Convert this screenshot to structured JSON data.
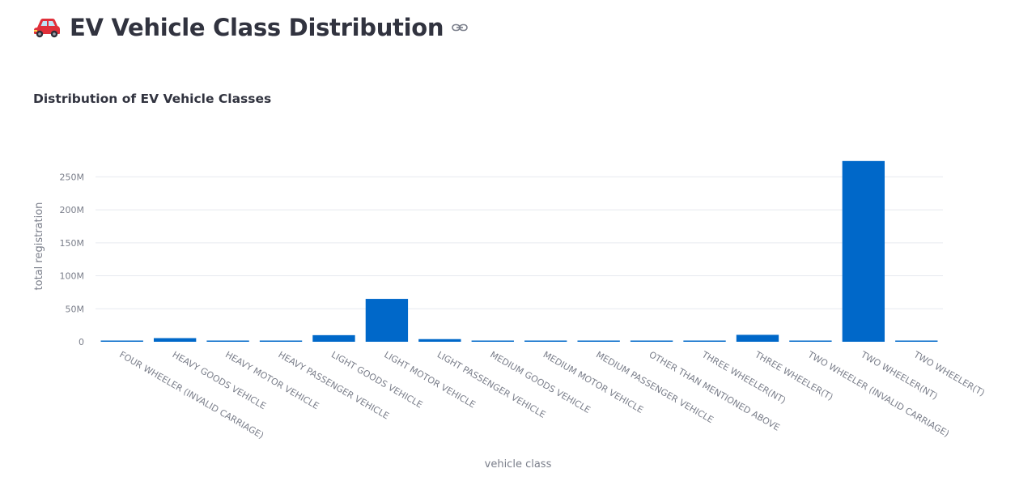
{
  "header": {
    "title": "EV Vehicle Class Distribution",
    "icon": "car-icon",
    "anchor_icon": "link-icon"
  },
  "chart_data": {
    "type": "bar",
    "title": "Distribution of EV Vehicle Classes",
    "xlabel": "vehicle class",
    "ylabel": "total registration",
    "ylim": [
      0,
      275000000
    ],
    "yticks": [
      0,
      50000000,
      100000000,
      150000000,
      200000000,
      250000000
    ],
    "ytick_labels": [
      "0",
      "50M",
      "100M",
      "150M",
      "200M",
      "250M"
    ],
    "grid": true,
    "bar_color": "#0068c9",
    "categories": [
      "FOUR WHEELER (INVALID CARRIAGE)",
      "HEAVY GOODS VEHICLE",
      "HEAVY MOTOR VEHICLE",
      "HEAVY PASSENGER VEHICLE",
      "LIGHT GOODS VEHICLE",
      "LIGHT MOTOR VEHICLE",
      "LIGHT PASSENGER VEHICLE",
      "MEDIUM GOODS VEHICLE",
      "MEDIUM MOTOR VEHICLE",
      "MEDIUM PASSENGER VEHICLE",
      "OTHER THAN MENTIONED ABOVE",
      "THREE WHEELER(NT)",
      "THREE WHEELER(T)",
      "TWO WHEELER (INVALID CARRIAGE)",
      "TWO WHEELER(NT)",
      "TWO WHEELER(T)"
    ],
    "values": [
      1000000,
      5500000,
      1000000,
      1000000,
      10000000,
      65000000,
      4000000,
      1000000,
      1000000,
      1000000,
      1000000,
      1000000,
      10500000,
      1000000,
      274000000,
      1000000
    ]
  }
}
